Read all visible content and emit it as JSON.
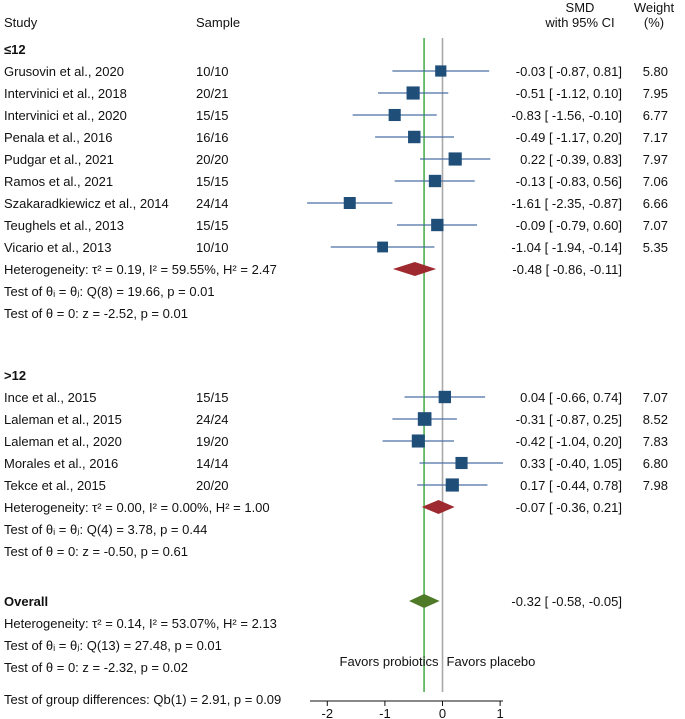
{
  "chart_data": {
    "type": "forest",
    "header": {
      "study": "Study",
      "sample": "Sample",
      "smd_line1": "SMD",
      "smd_line2": "with 95% CI",
      "weight_line1": "Weight",
      "weight_line2": "(%)"
    },
    "groups": [
      {
        "label": "≤12",
        "studies": [
          {
            "name": "Grusovin et al., 2020",
            "sample": "10/10",
            "smd": -0.03,
            "lo": -0.87,
            "hi": 0.81,
            "ci_text": "-0.03 [ -0.87,   0.81]",
            "weight": 5.8,
            "weight_text": "5.80"
          },
          {
            "name": "Intervinici et al., 2018",
            "sample": "20/21",
            "smd": -0.51,
            "lo": -1.12,
            "hi": 0.1,
            "ci_text": "-0.51 [ -1.12,   0.10]",
            "weight": 7.95,
            "weight_text": "7.95"
          },
          {
            "name": "Intervinici et al., 2020",
            "sample": "15/15",
            "smd": -0.83,
            "lo": -1.56,
            "hi": -0.1,
            "ci_text": "-0.83 [ -1.56,  -0.10]",
            "weight": 6.77,
            "weight_text": "6.77"
          },
          {
            "name": "Penala et al., 2016",
            "sample": "16/16",
            "smd": -0.49,
            "lo": -1.17,
            "hi": 0.2,
            "ci_text": "-0.49 [ -1.17,   0.20]",
            "weight": 7.17,
            "weight_text": "7.17"
          },
          {
            "name": "Pudgar et al., 2021",
            "sample": "20/20",
            "smd": 0.22,
            "lo": -0.39,
            "hi": 0.83,
            "ci_text": "0.22 [ -0.39,   0.83]",
            "weight": 7.97,
            "weight_text": "7.97"
          },
          {
            "name": "Ramos et al., 2021",
            "sample": "15/15",
            "smd": -0.13,
            "lo": -0.83,
            "hi": 0.56,
            "ci_text": "-0.13 [ -0.83,   0.56]",
            "weight": 7.06,
            "weight_text": "7.06"
          },
          {
            "name": "Szakaradkiewicz et al., 2014",
            "sample": "24/14",
            "smd": -1.61,
            "lo": -2.35,
            "hi": -0.87,
            "ci_text": "-1.61 [ -2.35,  -0.87]",
            "weight": 6.66,
            "weight_text": "6.66"
          },
          {
            "name": "Teughels et al., 2013",
            "sample": "15/15",
            "smd": -0.09,
            "lo": -0.79,
            "hi": 0.6,
            "ci_text": "-0.09 [ -0.79,   0.60]",
            "weight": 7.07,
            "weight_text": "7.07"
          },
          {
            "name": "Vicario et al., 2013",
            "sample": "10/10",
            "smd": -1.04,
            "lo": -1.94,
            "hi": -0.14,
            "ci_text": "-1.04 [ -1.94,  -0.14]",
            "weight": 5.35,
            "weight_text": "5.35"
          }
        ],
        "pooled": {
          "label": "Heterogeneity: τ² = 0.19, I² = 59.55%, H² = 2.47",
          "smd": -0.48,
          "lo": -0.86,
          "hi": -0.11,
          "ci_text": "-0.48 [ -0.86,  -0.11]"
        },
        "test_theta_i": "Test of θᵢ = θⱼ: Q(8) = 19.66, p = 0.01",
        "test_theta_0": "Test of θ = 0: z = -2.52, p = 0.01"
      },
      {
        "label": ">12",
        "studies": [
          {
            "name": "Ince et al., 2015",
            "sample": "15/15",
            "smd": 0.04,
            "lo": -0.66,
            "hi": 0.74,
            "ci_text": "0.04 [ -0.66,   0.74]",
            "weight": 7.07,
            "weight_text": "7.07"
          },
          {
            "name": "Laleman et al., 2015",
            "sample": "24/24",
            "smd": -0.31,
            "lo": -0.87,
            "hi": 0.25,
            "ci_text": "-0.31 [ -0.87,   0.25]",
            "weight": 8.52,
            "weight_text": "8.52"
          },
          {
            "name": "Laleman et al., 2020",
            "sample": "19/20",
            "smd": -0.42,
            "lo": -1.04,
            "hi": 0.2,
            "ci_text": "-0.42 [ -1.04,   0.20]",
            "weight": 7.83,
            "weight_text": "7.83"
          },
          {
            "name": "Morales et al., 2016",
            "sample": "14/14",
            "smd": 0.33,
            "lo": -0.4,
            "hi": 1.05,
            "ci_text": "0.33 [ -0.40,   1.05]",
            "weight": 6.8,
            "weight_text": "6.80"
          },
          {
            "name": "Tekce et al., 2015",
            "sample": "20/20",
            "smd": 0.17,
            "lo": -0.44,
            "hi": 0.78,
            "ci_text": "0.17 [ -0.44,   0.78]",
            "weight": 7.98,
            "weight_text": "7.98"
          }
        ],
        "pooled": {
          "label": "Heterogeneity: τ² = 0.00, I² = 0.00%, H² = 1.00",
          "smd": -0.07,
          "lo": -0.36,
          "hi": 0.21,
          "ci_text": "-0.07 [ -0.36,   0.21]"
        },
        "test_theta_i": "Test of θᵢ = θⱼ: Q(4) = 3.78, p = 0.44",
        "test_theta_0": "Test of θ = 0: z = -0.50, p = 0.61"
      }
    ],
    "overall": {
      "label": "Overall",
      "smd": -0.32,
      "lo": -0.58,
      "hi": -0.05,
      "ci_text": "-0.32 [ -0.58,  -0.05]",
      "heterogeneity": "Heterogeneity: τ² = 0.14, I² = 53.07%, H² = 2.13",
      "test_theta_i": "Test of θᵢ = θⱼ: Q(13) = 27.48, p = 0.01",
      "test_theta_0": "Test of θ = 0: z = -2.32, p = 0.02"
    },
    "group_test": "Test of group differences: Qb(1) = 2.91, p = 0.09",
    "favors_left": "Favors probiotics",
    "favors_right": "Favors placebo",
    "x_axis": {
      "min": -2.3,
      "max": 1.05,
      "ticks": [
        -2,
        -1,
        0,
        1
      ]
    },
    "reference_line": {
      "value": 0,
      "color": "#a9a9a9"
    },
    "overall_line": {
      "value": -0.32,
      "color": "#4caf50"
    },
    "colors": {
      "study_marker": "#1f4e79",
      "ci_line": "#4a6fa5",
      "subgroup_diamond": "#9e2a2f",
      "overall_diamond": "#4f7a28"
    }
  }
}
